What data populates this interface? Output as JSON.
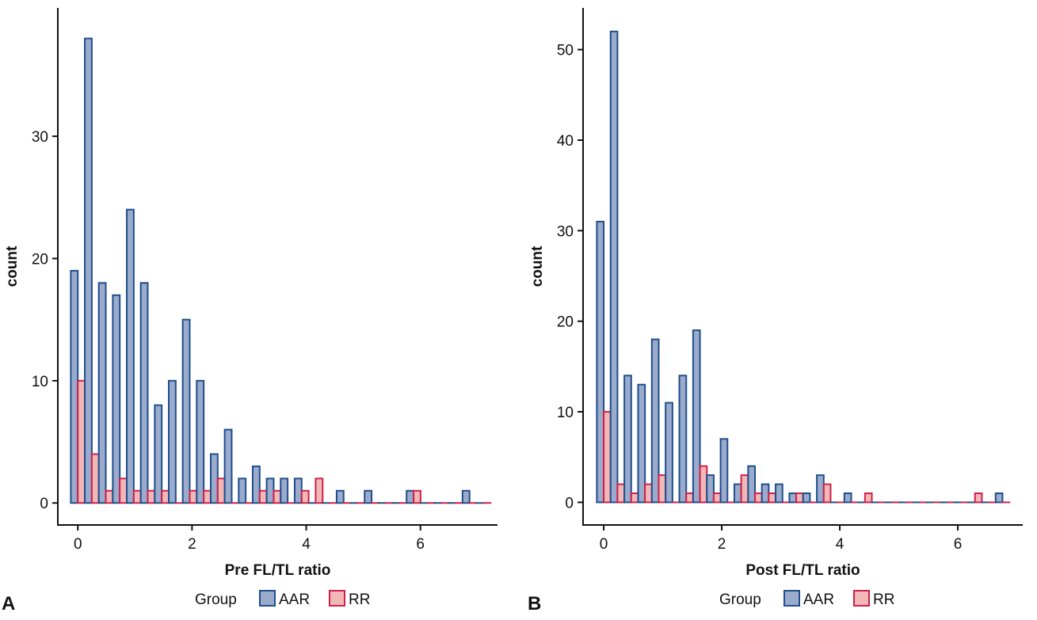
{
  "colors": {
    "aar_fill": "#9aabcc",
    "aar_stroke": "#1f4e8c",
    "rr_fill": "#f2b8b8",
    "rr_stroke": "#d0204a",
    "axis": "#111111"
  },
  "chart_data": [
    {
      "type": "bar",
      "panel_label": "A",
      "xlabel": "Pre FL/TL ratio",
      "ylabel": "count",
      "xlim": [
        -0.35,
        7.35
      ],
      "ylim": [
        -1.8,
        40.5
      ],
      "xticks": [
        0,
        2,
        4,
        6
      ],
      "yticks": [
        0,
        10,
        20,
        30
      ],
      "bin_width": 0.245,
      "legend": {
        "title": "Group",
        "position": "bottom",
        "labels": [
          "AAR",
          "RR"
        ]
      },
      "grid": false,
      "x": [
        0.0,
        0.245,
        0.49,
        0.735,
        0.98,
        1.225,
        1.47,
        1.715,
        1.96,
        2.205,
        2.45,
        2.695,
        2.94,
        3.185,
        3.43,
        3.675,
        3.92,
        4.165,
        4.41,
        4.655,
        4.9,
        5.145,
        5.39,
        5.635,
        5.88,
        6.125,
        6.37,
        6.615,
        6.86,
        7.105
      ],
      "series": [
        {
          "name": "AAR",
          "values": [
            19,
            38,
            18,
            17,
            24,
            18,
            8,
            10,
            15,
            10,
            4,
            6,
            2,
            3,
            2,
            2,
            2,
            0,
            0,
            1,
            0,
            1,
            0,
            0,
            1,
            0,
            0,
            0,
            1,
            0
          ]
        },
        {
          "name": "RR",
          "values": [
            10,
            4,
            1,
            2,
            1,
            1,
            1,
            0,
            1,
            1,
            2,
            0,
            0,
            1,
            1,
            0,
            1,
            2,
            0,
            0,
            0,
            0,
            0,
            0,
            1,
            0,
            0,
            0,
            0,
            0
          ]
        }
      ]
    },
    {
      "type": "bar",
      "panel_label": "B",
      "xlabel": "Post FL/TL ratio",
      "ylabel": "count",
      "xlim": [
        -0.35,
        7.1
      ],
      "ylim": [
        -2.5,
        54.6
      ],
      "xticks": [
        0,
        2,
        4,
        6
      ],
      "yticks": [
        0,
        10,
        20,
        30,
        40,
        50
      ],
      "bin_width": 0.233,
      "legend": {
        "title": "Group",
        "position": "bottom",
        "labels": [
          "AAR",
          "RR"
        ]
      },
      "grid": false,
      "x": [
        0.0,
        0.233,
        0.466,
        0.699,
        0.932,
        1.165,
        1.398,
        1.631,
        1.864,
        2.097,
        2.33,
        2.563,
        2.796,
        3.029,
        3.262,
        3.495,
        3.728,
        3.961,
        4.194,
        4.427,
        4.66,
        4.893,
        5.126,
        5.359,
        5.592,
        5.825,
        6.058,
        6.291,
        6.524,
        6.757
      ],
      "series": [
        {
          "name": "AAR",
          "values": [
            31,
            52,
            14,
            13,
            18,
            11,
            14,
            19,
            3,
            7,
            2,
            4,
            2,
            2,
            1,
            1,
            3,
            0,
            1,
            0,
            0,
            0,
            0,
            0,
            0,
            0,
            0,
            0,
            0,
            1
          ]
        },
        {
          "name": "RR",
          "values": [
            10,
            2,
            1,
            2,
            3,
            0,
            1,
            4,
            1,
            0,
            3,
            1,
            1,
            0,
            1,
            0,
            2,
            0,
            0,
            1,
            0,
            0,
            0,
            0,
            0,
            0,
            0,
            1,
            0,
            0
          ]
        }
      ]
    }
  ]
}
